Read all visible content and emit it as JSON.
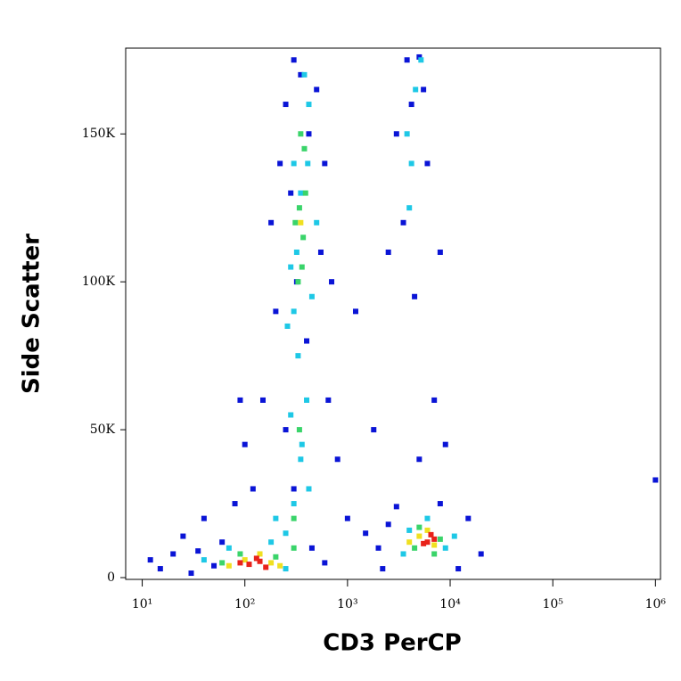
{
  "chart_data": {
    "type": "scatter",
    "xlabel": "CD3 PerCP",
    "ylabel": "Side Scatter",
    "xscale": "log",
    "xlim": [
      6.9,
      1120000
    ],
    "xticks": [
      {
        "value": 10,
        "label": "10¹"
      },
      {
        "value": 100,
        "label": "10²"
      },
      {
        "value": 1000,
        "label": "10³"
      },
      {
        "value": 10000,
        "label": "10⁴"
      },
      {
        "value": 100000,
        "label": "10⁵"
      },
      {
        "value": 1000000,
        "label": "10⁶"
      }
    ],
    "ylim": [
      -600,
      179000
    ],
    "yticks": [
      0,
      {
        "value": 50000,
        "label": "50K"
      },
      {
        "value": 100000,
        "label": "100K"
      },
      {
        "value": 150000,
        "label": "150K"
      }
    ],
    "series": [
      {
        "color": "#0a14d6",
        "x": [
          15,
          20,
          25,
          40,
          60,
          80,
          100,
          150,
          200,
          180,
          220,
          250,
          300,
          350,
          500,
          600,
          700,
          650,
          800,
          1000,
          1500,
          2000,
          2500,
          3000,
          8000,
          15000,
          20000,
          12000,
          3500,
          3000,
          3800,
          5000,
          6000,
          8000,
          4500,
          2500,
          7000,
          9000,
          5000,
          450,
          600,
          50,
          35,
          300,
          250,
          400,
          550,
          320,
          280,
          420,
          120,
          90,
          1200,
          1800,
          2200,
          30,
          12,
          4200,
          5500,
          1000000
        ],
        "y": [
          3000,
          8000,
          14000,
          20000,
          12000,
          25000,
          45000,
          60000,
          90000,
          120000,
          140000,
          160000,
          175000,
          170000,
          165000,
          140000,
          100000,
          60000,
          40000,
          20000,
          15000,
          10000,
          18000,
          24000,
          25000,
          20000,
          8000,
          3000,
          120000,
          150000,
          175000,
          176000,
          140000,
          110000,
          95000,
          110000,
          60000,
          45000,
          40000,
          10000,
          5000,
          4000,
          9000,
          30000,
          50000,
          80000,
          110000,
          100000,
          130000,
          150000,
          30000,
          60000,
          90000,
          50000,
          3000,
          1500,
          6000,
          160000,
          165000,
          33000
        ]
      },
      {
        "color": "#1ec8e6",
        "x": [
          250,
          300,
          350,
          280,
          400,
          330,
          300,
          450,
          280,
          500,
          300,
          420,
          380,
          260,
          350,
          70,
          180,
          40,
          250,
          3500,
          9000,
          4000,
          11000,
          6000,
          4200,
          4600,
          4000,
          3800,
          5200,
          360,
          420,
          200,
          320,
          410
        ],
        "y": [
          15000,
          25000,
          40000,
          55000,
          60000,
          75000,
          90000,
          95000,
          105000,
          120000,
          140000,
          160000,
          170000,
          85000,
          130000,
          10000,
          12000,
          6000,
          3000,
          8000,
          10000,
          16000,
          14000,
          20000,
          140000,
          165000,
          125000,
          150000,
          175000,
          45000,
          30000,
          20000,
          110000,
          140000
        ]
      },
      {
        "color": "#3ad46a",
        "x": [
          330,
          370,
          340,
          390,
          310,
          360,
          380,
          350,
          340,
          300,
          90,
          200,
          60,
          300,
          4500,
          8000,
          5000,
          7000
        ],
        "y": [
          100000,
          115000,
          125000,
          130000,
          120000,
          105000,
          145000,
          150000,
          50000,
          20000,
          8000,
          7000,
          5000,
          10000,
          10000,
          13000,
          17000,
          8000
        ]
      },
      {
        "color": "#f0e020",
        "x": [
          100,
          180,
          140,
          70,
          220,
          5000,
          7000,
          6000,
          4000,
          350
        ],
        "y": [
          6000,
          5000,
          8000,
          4000,
          4000,
          14000,
          11000,
          16000,
          12000,
          120000
        ]
      },
      {
        "color": "#e8221a",
        "x": [
          110,
          140,
          160,
          130,
          90,
          6000,
          7000,
          5500,
          6500
        ],
        "y": [
          4500,
          5500,
          3500,
          6500,
          5000,
          12000,
          13000,
          11500,
          14500
        ]
      }
    ]
  }
}
